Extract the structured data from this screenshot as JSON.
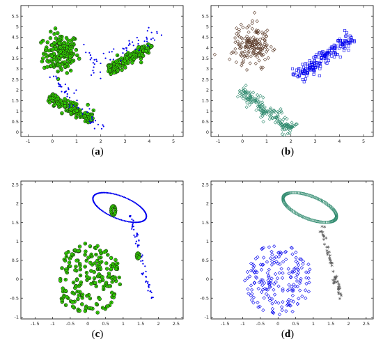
{
  "colors": {
    "green": "#33dd00",
    "blue": "#0000ee",
    "dark": "#1c3a10",
    "brown": "#5a3a28",
    "teal": "#2f8a6e",
    "gray": "#555555"
  },
  "chart_data": [
    {
      "id": "a",
      "type": "scatter",
      "caption_label": "a",
      "xlim": [
        -1.3,
        5.4
      ],
      "ylim": [
        -0.2,
        6.0
      ],
      "xticks": [
        "-1",
        "0",
        "1",
        "2",
        "3",
        "4",
        "5"
      ],
      "yticks": [
        "0",
        "0.5",
        "1",
        "1.5",
        "2",
        "2.5",
        "3",
        "3.5",
        "4",
        "4.5",
        "5",
        "5.5"
      ],
      "clusters": [
        {
          "kind": "blob",
          "cx": 0.35,
          "cy": 3.75,
          "rx": 0.65,
          "ry": 0.85,
          "n": 170,
          "style": "green-dot"
        },
        {
          "kind": "band",
          "x0": -0.1,
          "y0": 1.7,
          "x1": 1.7,
          "y1": 0.6,
          "width": 0.25,
          "n": 150,
          "style": "green-dot"
        },
        {
          "kind": "band",
          "x0": 2.3,
          "y0": 2.9,
          "x1": 4.1,
          "y1": 4.1,
          "width": 0.25,
          "n": 150,
          "style": "green-dot"
        },
        {
          "kind": "band",
          "x0": 0.0,
          "y0": 2.7,
          "x1": 2.0,
          "y1": 0.0,
          "width": 0.35,
          "n": 45,
          "style": "blue-dot"
        },
        {
          "kind": "band",
          "x0": 1.6,
          "y0": 3.2,
          "x1": 4.6,
          "y1": 4.8,
          "width": 0.35,
          "n": 45,
          "style": "blue-dot"
        },
        {
          "kind": "band",
          "x0": 1.3,
          "y0": 4.2,
          "x1": 2.0,
          "y1": 2.5,
          "width": 0.2,
          "n": 12,
          "style": "blue-dot"
        }
      ]
    },
    {
      "id": "b",
      "type": "scatter",
      "caption_label": "b",
      "xlim": [
        -1.3,
        5.4
      ],
      "ylim": [
        -0.2,
        6.0
      ],
      "xticks": [
        "-1",
        "0",
        "1",
        "2",
        "3",
        "4",
        "5"
      ],
      "yticks": [
        "0",
        "0.5",
        "1",
        "1.5",
        "2",
        "2.5",
        "3",
        "3.5",
        "4",
        "4.5",
        "5",
        "5.5"
      ],
      "clusters": [
        {
          "kind": "blob",
          "cx": 0.4,
          "cy": 4.1,
          "rx": 0.7,
          "ry": 0.9,
          "n": 170,
          "style": "brown-diamond"
        },
        {
          "kind": "band",
          "x0": -0.1,
          "y0": 2.0,
          "x1": 2.1,
          "y1": 0.1,
          "width": 0.3,
          "n": 180,
          "style": "teal-diamond"
        },
        {
          "kind": "band",
          "x0": 2.2,
          "y0": 2.6,
          "x1": 4.5,
          "y1": 4.5,
          "width": 0.35,
          "n": 190,
          "style": "blue-square"
        }
      ]
    },
    {
      "id": "c",
      "type": "scatter",
      "caption_label": "c",
      "xlim": [
        -1.9,
        2.7
      ],
      "ylim": [
        -1.05,
        2.6
      ],
      "xticks": [
        "-1.5",
        "-1",
        "-0.5",
        "0",
        "0.5",
        "1",
        "1.5",
        "2",
        "2.5"
      ],
      "yticks": [
        "-1",
        "-0.5",
        "0",
        "0.5",
        "1",
        "1.5",
        "2",
        "2.5"
      ],
      "clusters": [
        {
          "kind": "disk",
          "cx": 0.0,
          "cy": 0.0,
          "r": 0.95,
          "n": 190,
          "style": "green-dot"
        },
        {
          "kind": "ring",
          "cx": 0.9,
          "cy": 1.9,
          "rx": 0.8,
          "ry": 0.3,
          "rot": -0.35,
          "n": 110,
          "style": "blue-dot"
        },
        {
          "kind": "band",
          "x0": 1.2,
          "y0": 1.7,
          "x1": 1.8,
          "y1": -0.5,
          "width": 0.07,
          "n": 55,
          "style": "blue-dot"
        },
        {
          "kind": "arc",
          "cx": 0.72,
          "cy": 1.82,
          "r": 0.12,
          "n": 14,
          "style": "green-dot"
        },
        {
          "kind": "arc",
          "cx": 1.42,
          "cy": 0.62,
          "r": 0.07,
          "n": 8,
          "style": "green-dot"
        }
      ]
    },
    {
      "id": "d",
      "type": "scatter",
      "caption_label": "d",
      "xlim": [
        -1.9,
        2.7
      ],
      "ylim": [
        -1.05,
        2.6
      ],
      "xticks": [
        "-1.5",
        "-1",
        "-0.5",
        "0",
        "0.5",
        "1",
        "1.5",
        "2",
        "2.5"
      ],
      "yticks": [
        "-1",
        "-0.5",
        "0",
        "0.5",
        "1",
        "1.5",
        "2",
        "2.5"
      ],
      "clusters": [
        {
          "kind": "disk",
          "cx": 0.0,
          "cy": 0.0,
          "r": 0.95,
          "n": 190,
          "style": "blue-diamond"
        },
        {
          "kind": "ring",
          "cx": 0.9,
          "cy": 1.9,
          "rx": 0.8,
          "ry": 0.3,
          "rot": -0.35,
          "n": 110,
          "style": "teal-square"
        },
        {
          "kind": "band",
          "x0": 1.2,
          "y0": 1.4,
          "x1": 1.8,
          "y1": -0.5,
          "width": 0.07,
          "n": 50,
          "style": "gray-star"
        }
      ]
    }
  ]
}
